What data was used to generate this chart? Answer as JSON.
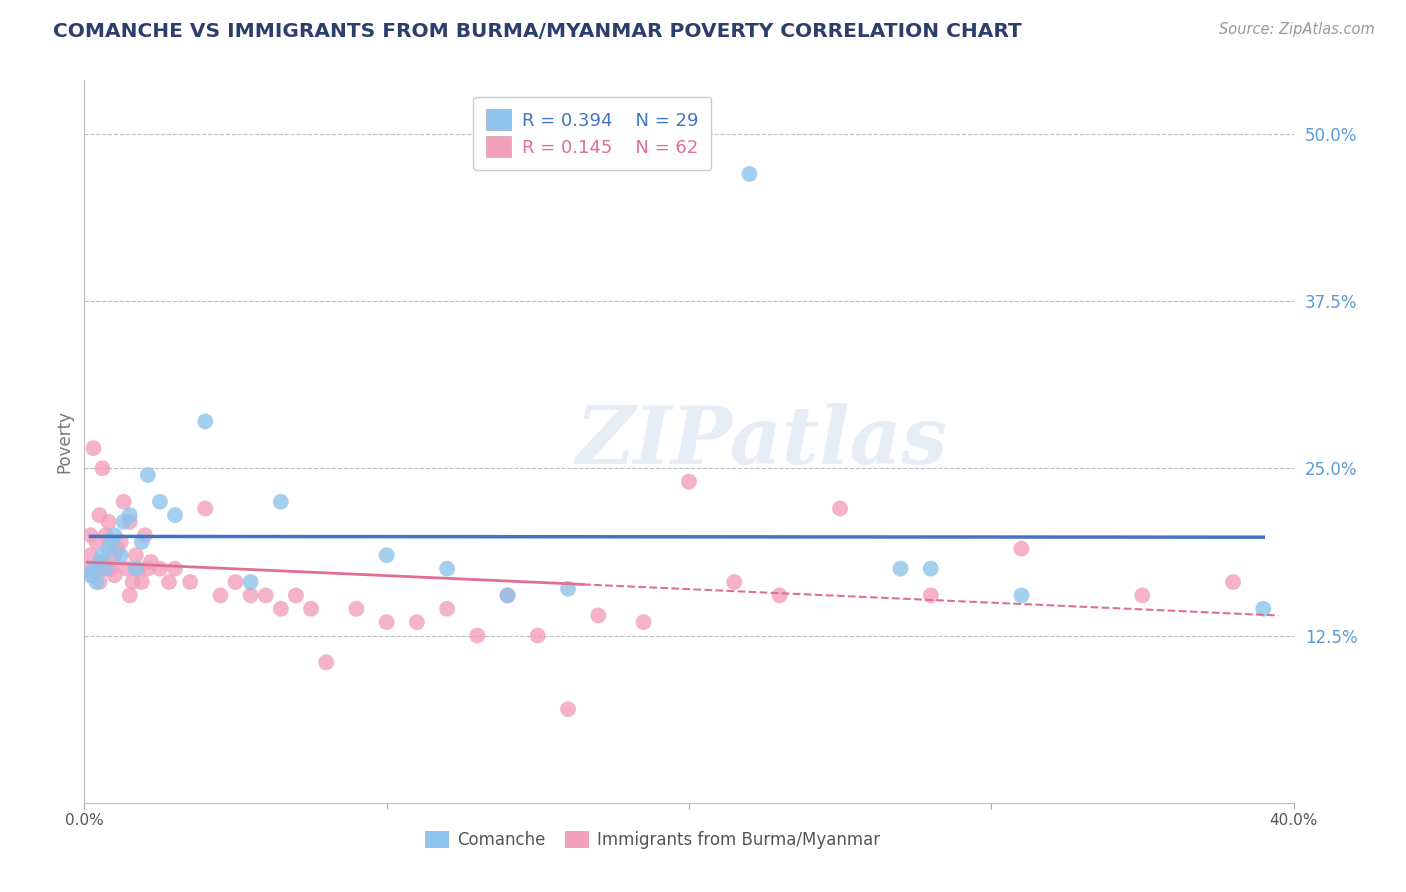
{
  "title": "COMANCHE VS IMMIGRANTS FROM BURMA/MYANMAR POVERTY CORRELATION CHART",
  "source": "Source: ZipAtlas.com",
  "ylabel": "Poverty",
  "ytick_labels": [
    "12.5%",
    "25.0%",
    "37.5%",
    "50.0%"
  ],
  "ytick_values": [
    0.125,
    0.25,
    0.375,
    0.5
  ],
  "xlim": [
    0.0,
    0.4
  ],
  "ylim": [
    0.0,
    0.54
  ],
  "watermark": "ZIPatlas",
  "legend_R_comanche": "R = 0.394",
  "legend_N_comanche": "N = 29",
  "legend_R_burma": "R = 0.145",
  "legend_N_burma": "N = 62",
  "color_comanche": "#8FC3EC",
  "color_burma": "#F2A0BB",
  "line_color_comanche": "#4472C4",
  "line_color_burma": "#E07090",
  "background_color": "#FFFFFF",
  "grid_color": "#BBBBCC",
  "comanche_x": [
    0.002,
    0.003,
    0.004,
    0.005,
    0.006,
    0.007,
    0.008,
    0.009,
    0.01,
    0.012,
    0.013,
    0.015,
    0.017,
    0.019,
    0.021,
    0.025,
    0.03,
    0.04,
    0.055,
    0.065,
    0.1,
    0.12,
    0.14,
    0.16,
    0.22,
    0.27,
    0.28,
    0.31,
    0.39
  ],
  "comanche_y": [
    0.17,
    0.175,
    0.165,
    0.18,
    0.185,
    0.175,
    0.19,
    0.195,
    0.2,
    0.185,
    0.21,
    0.215,
    0.175,
    0.195,
    0.245,
    0.225,
    0.215,
    0.285,
    0.165,
    0.225,
    0.185,
    0.175,
    0.155,
    0.16,
    0.47,
    0.175,
    0.175,
    0.155,
    0.145
  ],
  "burma_x": [
    0.001,
    0.002,
    0.002,
    0.003,
    0.003,
    0.004,
    0.004,
    0.005,
    0.005,
    0.006,
    0.006,
    0.007,
    0.007,
    0.008,
    0.008,
    0.009,
    0.01,
    0.01,
    0.011,
    0.012,
    0.013,
    0.014,
    0.015,
    0.015,
    0.016,
    0.017,
    0.018,
    0.019,
    0.02,
    0.021,
    0.022,
    0.025,
    0.028,
    0.03,
    0.035,
    0.04,
    0.045,
    0.05,
    0.055,
    0.06,
    0.065,
    0.07,
    0.075,
    0.08,
    0.09,
    0.1,
    0.11,
    0.12,
    0.13,
    0.14,
    0.15,
    0.16,
    0.17,
    0.185,
    0.2,
    0.215,
    0.23,
    0.25,
    0.28,
    0.31,
    0.35,
    0.38
  ],
  "burma_y": [
    0.175,
    0.185,
    0.2,
    0.265,
    0.17,
    0.195,
    0.175,
    0.215,
    0.165,
    0.25,
    0.175,
    0.2,
    0.18,
    0.175,
    0.21,
    0.175,
    0.185,
    0.17,
    0.19,
    0.195,
    0.225,
    0.175,
    0.155,
    0.21,
    0.165,
    0.185,
    0.175,
    0.165,
    0.2,
    0.175,
    0.18,
    0.175,
    0.165,
    0.175,
    0.165,
    0.22,
    0.155,
    0.165,
    0.155,
    0.155,
    0.145,
    0.155,
    0.145,
    0.105,
    0.145,
    0.135,
    0.135,
    0.145,
    0.125,
    0.155,
    0.125,
    0.07,
    0.14,
    0.135,
    0.24,
    0.165,
    0.155,
    0.22,
    0.155,
    0.19,
    0.155,
    0.165
  ],
  "pink_line_end_x": 0.165,
  "blue_line_start_x": 0.002,
  "blue_line_end_x": 0.39
}
